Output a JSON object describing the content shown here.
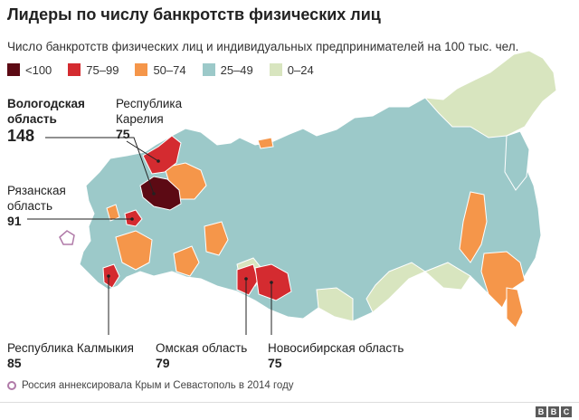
{
  "title": "Лидеры по числу банкротств физических лиц",
  "subtitle": "Число банкротств физических лиц и индивидуальных предпринимателей на 100 тыс. чел.",
  "legend": [
    {
      "label": "<100",
      "color": "#5c0a14"
    },
    {
      "label": "75–99",
      "color": "#d42b30"
    },
    {
      "label": "50–74",
      "color": "#f5964a"
    },
    {
      "label": "25–49",
      "color": "#9cc9c9"
    },
    {
      "label": "0–24",
      "color": "#d8e5bf"
    }
  ],
  "annotations": {
    "vologda": {
      "line1": "Вологодская",
      "line2": "область",
      "value": "148"
    },
    "karelia": {
      "line1": "Республика",
      "line2": "Карелия",
      "value": "75"
    },
    "ryazan": {
      "line1": "Рязанская",
      "line2": "область",
      "value": "91"
    },
    "kalmykia": {
      "line1": "Республика Калмыкия",
      "value": "85"
    },
    "omsk": {
      "line1": "Омская область",
      "value": "79"
    },
    "novosibirsk": {
      "line1": "Новосибирская область",
      "value": "75"
    }
  },
  "footnote": "Россия аннексировала Крым и Севастополь в 2014 году",
  "colors": {
    "land": "#9cc9c9",
    "light": "#d8e5bf",
    "orange": "#f5964a",
    "red": "#d42b30",
    "dark": "#5c0a14",
    "border": "#ffffff",
    "crimea": "#b07aa8"
  },
  "logo": "BBC"
}
